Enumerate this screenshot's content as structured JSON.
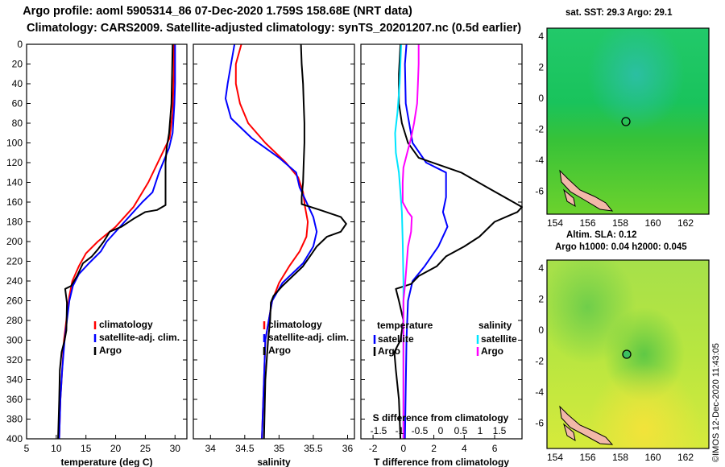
{
  "header": {
    "title_line1": "Argo profile: aoml 5905314_86 07-Dec-2020 1.759S 158.68E (NRT data)",
    "title_line2": "Climatology: CARS2009. Satellite-adjusted climatology: synTS_20201207.nc (0.5d earlier)"
  },
  "colors": {
    "climatology": "#ff0000",
    "satellite": "#0000ff",
    "argo": "#000000",
    "s_sat": "#00e5ff",
    "s_argo": "#ff00ff"
  },
  "chart_data": [
    {
      "type": "line",
      "id": "temperature",
      "xlabel": "temperature (deg C)",
      "ylabel": "depth",
      "xlim": [
        5,
        32
      ],
      "ylim": [
        400,
        0
      ],
      "xticks": [
        "5",
        "10",
        "15",
        "20",
        "25",
        "30"
      ],
      "yticks": [
        "0",
        "20",
        "40",
        "60",
        "80",
        "100",
        "120",
        "140",
        "160",
        "180",
        "200",
        "220",
        "240",
        "260",
        "280",
        "300",
        "320",
        "340",
        "360",
        "380",
        "400"
      ],
      "legend": [
        "climatology",
        "satellite-adj. clim.",
        "Argo"
      ],
      "series": [
        {
          "name": "climatology",
          "color": "#ff0000",
          "points": [
            [
              29.8,
              0
            ],
            [
              29.8,
              30
            ],
            [
              29.7,
              50
            ],
            [
              29.6,
              70
            ],
            [
              29.1,
              95
            ],
            [
              27.5,
              115
            ],
            [
              25.5,
              140
            ],
            [
              23.0,
              165
            ],
            [
              20.0,
              185
            ],
            [
              17.0,
              200
            ],
            [
              15.0,
              212
            ],
            [
              13.8,
              225
            ],
            [
              12.7,
              240
            ],
            [
              12.2,
              255
            ],
            [
              11.8,
              275
            ],
            [
              11.3,
              300
            ],
            [
              11.0,
              330
            ],
            [
              10.7,
              360
            ],
            [
              10.5,
              400
            ]
          ]
        },
        {
          "name": "satellite-adj. clim.",
          "color": "#0000ff",
          "points": [
            [
              30.0,
              0
            ],
            [
              30.0,
              40
            ],
            [
              29.9,
              60
            ],
            [
              29.6,
              90
            ],
            [
              29.0,
              105
            ],
            [
              27.3,
              130
            ],
            [
              26.2,
              150
            ],
            [
              24.5,
              160
            ],
            [
              21.5,
              180
            ],
            [
              18.5,
              200
            ],
            [
              17.5,
              210
            ],
            [
              15.5,
              222
            ],
            [
              13.8,
              233
            ],
            [
              12.8,
              245
            ],
            [
              12.2,
              260
            ],
            [
              11.8,
              280
            ],
            [
              11.4,
              300
            ],
            [
              11.0,
              330
            ],
            [
              10.7,
              360
            ],
            [
              10.5,
              400
            ]
          ]
        },
        {
          "name": "Argo",
          "color": "#000000",
          "points": [
            [
              29.6,
              0
            ],
            [
              29.5,
              30
            ],
            [
              29.4,
              60
            ],
            [
              29.0,
              90
            ],
            [
              28.6,
              105
            ],
            [
              28.4,
              120
            ],
            [
              28.4,
              140
            ],
            [
              28.4,
              163
            ],
            [
              27.0,
              168
            ],
            [
              25.0,
              170
            ],
            [
              23.0,
              177
            ],
            [
              21.0,
              185
            ],
            [
              19.0,
              190
            ],
            [
              18.0,
              200
            ],
            [
              17.0,
              208
            ],
            [
              16.0,
              215
            ],
            [
              14.5,
              222
            ],
            [
              13.5,
              235
            ],
            [
              12.5,
              245
            ],
            [
              11.5,
              248
            ],
            [
              11.8,
              262
            ],
            [
              11.7,
              290
            ],
            [
              11.4,
              300
            ],
            [
              10.9,
              312
            ],
            [
              10.6,
              330
            ],
            [
              10.5,
              360
            ],
            [
              10.3,
              400
            ]
          ]
        }
      ]
    },
    {
      "type": "line",
      "id": "salinity",
      "xlabel": "salinity",
      "ylabel": "depth",
      "xlim": [
        33.75,
        36.1
      ],
      "ylim": [
        400,
        0
      ],
      "xticks": [
        "34",
        "34.5",
        "35",
        "35.5",
        "36"
      ],
      "legend": [
        "climatology",
        "satellite-adj. clim.",
        "Argo"
      ],
      "series": [
        {
          "name": "climatology",
          "color": "#ff0000",
          "points": [
            [
              34.45,
              0
            ],
            [
              34.37,
              20
            ],
            [
              34.37,
              40
            ],
            [
              34.43,
              60
            ],
            [
              34.55,
              80
            ],
            [
              34.8,
              100
            ],
            [
              35.1,
              120
            ],
            [
              35.28,
              135
            ],
            [
              35.35,
              150
            ],
            [
              35.38,
              165
            ],
            [
              35.42,
              180
            ],
            [
              35.4,
              195
            ],
            [
              35.3,
              210
            ],
            [
              35.15,
              225
            ],
            [
              35.0,
              242
            ],
            [
              34.9,
              260
            ],
            [
              34.85,
              280
            ],
            [
              34.8,
              300
            ],
            [
              34.78,
              340
            ],
            [
              34.75,
              400
            ]
          ]
        },
        {
          "name": "satellite-adj. clim.",
          "color": "#0000ff",
          "points": [
            [
              34.35,
              0
            ],
            [
              34.3,
              20
            ],
            [
              34.25,
              40
            ],
            [
              34.22,
              55
            ],
            [
              34.3,
              75
            ],
            [
              34.6,
              95
            ],
            [
              35.0,
              115
            ],
            [
              35.25,
              130
            ],
            [
              35.3,
              145
            ],
            [
              35.4,
              160
            ],
            [
              35.5,
              175
            ],
            [
              35.55,
              190
            ],
            [
              35.5,
              205
            ],
            [
              35.35,
              222
            ],
            [
              35.05,
              242
            ],
            [
              34.9,
              260
            ],
            [
              34.85,
              280
            ],
            [
              34.8,
              300
            ],
            [
              34.78,
              340
            ],
            [
              34.75,
              400
            ]
          ]
        },
        {
          "name": "Argo",
          "color": "#000000",
          "points": [
            [
              35.32,
              0
            ],
            [
              35.33,
              20
            ],
            [
              35.35,
              40
            ],
            [
              35.36,
              60
            ],
            [
              35.37,
              80
            ],
            [
              35.37,
              100
            ],
            [
              35.36,
              120
            ],
            [
              35.35,
              140
            ],
            [
              35.33,
              155
            ],
            [
              35.33,
              162
            ],
            [
              35.6,
              168
            ],
            [
              35.9,
              175
            ],
            [
              35.98,
              182
            ],
            [
              35.9,
              190
            ],
            [
              35.7,
              195
            ],
            [
              35.55,
              205
            ],
            [
              35.45,
              215
            ],
            [
              35.35,
              225
            ],
            [
              35.2,
              235
            ],
            [
              35.05,
              245
            ],
            [
              34.92,
              255
            ],
            [
              34.88,
              262
            ],
            [
              34.87,
              280
            ],
            [
              34.84,
              300
            ],
            [
              34.8,
              340
            ],
            [
              34.78,
              400
            ]
          ]
        }
      ]
    },
    {
      "type": "line",
      "id": "difference",
      "xlabel": "T difference from climatology",
      "xlabel_top": "S difference from climatology",
      "xlim": [
        -2.8,
        7.8
      ],
      "ylim": [
        400,
        0
      ],
      "xticks": [
        "-2",
        "0",
        "2",
        "4",
        "6"
      ],
      "xticks_top": [
        "-1.5",
        "-1",
        "-0.5",
        "0",
        "0.5",
        "1",
        "1.5"
      ],
      "legend_temperature": {
        "title": "temperature",
        "items": [
          "satellite",
          "Argo"
        ]
      },
      "legend_salinity": {
        "title": "salinity",
        "items": [
          "satellite",
          "Argo"
        ]
      },
      "series": [
        {
          "name": "T satellite",
          "color": "#0000ff",
          "points": [
            [
              0.2,
              0
            ],
            [
              0.1,
              20
            ],
            [
              0.15,
              60
            ],
            [
              0.6,
              100
            ],
            [
              1.5,
              120
            ],
            [
              2.8,
              130
            ],
            [
              2.8,
              155
            ],
            [
              2.6,
              170
            ],
            [
              2.9,
              185
            ],
            [
              2.3,
              205
            ],
            [
              1.4,
              225
            ],
            [
              0.6,
              240
            ],
            [
              0.3,
              260
            ],
            [
              0.2,
              300
            ],
            [
              0.1,
              400
            ]
          ]
        },
        {
          "name": "T Argo",
          "color": "#000000",
          "points": [
            [
              -0.2,
              0
            ],
            [
              -0.3,
              30
            ],
            [
              -0.3,
              60
            ],
            [
              -0.1,
              80
            ],
            [
              0.3,
              100
            ],
            [
              1.0,
              115
            ],
            [
              3.8,
              130
            ],
            [
              5.5,
              145
            ],
            [
              7.8,
              165
            ],
            [
              7.5,
              170
            ],
            [
              6.0,
              180
            ],
            [
              5.0,
              195
            ],
            [
              4.0,
              205
            ],
            [
              2.8,
              215
            ],
            [
              2.2,
              225
            ],
            [
              1.0,
              235
            ],
            [
              0.5,
              243
            ],
            [
              -0.5,
              248
            ],
            [
              -0.3,
              260
            ],
            [
              0.0,
              280
            ],
            [
              -0.2,
              300
            ],
            [
              -0.6,
              312
            ],
            [
              -0.5,
              330
            ],
            [
              -0.3,
              360
            ],
            [
              -0.2,
              400
            ]
          ]
        },
        {
          "name": "S satellite",
          "color": "#00e5ff",
          "points": [
            [
              -0.15,
              0
            ],
            [
              -0.25,
              40
            ],
            [
              -0.4,
              70
            ],
            [
              -0.55,
              90
            ],
            [
              -0.5,
              110
            ],
            [
              -0.3,
              130
            ],
            [
              -0.2,
              150
            ],
            [
              -0.1,
              170
            ],
            [
              -0.05,
              200
            ],
            [
              0.0,
              240
            ],
            [
              0.0,
              300
            ],
            [
              0.0,
              400
            ]
          ]
        },
        {
          "name": "S Argo",
          "color": "#ff00ff",
          "points": [
            [
              1.0,
              0
            ],
            [
              1.0,
              20
            ],
            [
              0.95,
              40
            ],
            [
              0.9,
              60
            ],
            [
              0.7,
              80
            ],
            [
              0.5,
              95
            ],
            [
              0.25,
              110
            ],
            [
              0.0,
              125
            ],
            [
              -0.05,
              140
            ],
            [
              -0.05,
              160
            ],
            [
              0.3,
              170
            ],
            [
              0.55,
              175
            ],
            [
              0.5,
              190
            ],
            [
              0.3,
              205
            ],
            [
              0.2,
              225
            ],
            [
              0.1,
              245
            ],
            [
              0.0,
              260
            ],
            [
              0.0,
              300
            ],
            [
              0.0,
              400
            ]
          ]
        }
      ]
    }
  ],
  "maps": [
    {
      "id": "sst-map",
      "title": "sat. SST: 29.3 Argo: 29.1",
      "xticks": [
        "154",
        "156",
        "158",
        "160",
        "162"
      ],
      "yticks": [
        "4",
        "2",
        "0",
        "-2",
        "-4",
        "-6"
      ]
    },
    {
      "id": "sla-map",
      "title_line1": "Altim. SLA: 0.12",
      "title_line2": "Argo h1000: 0.04 h2000: 0.045",
      "xticks": [
        "154",
        "156",
        "158",
        "160",
        "162"
      ],
      "yticks": [
        "4",
        "2",
        "0",
        "-2",
        "-4",
        "-6"
      ]
    }
  ],
  "credit": "©IMOS 12-Dec-2020 11:43:05"
}
